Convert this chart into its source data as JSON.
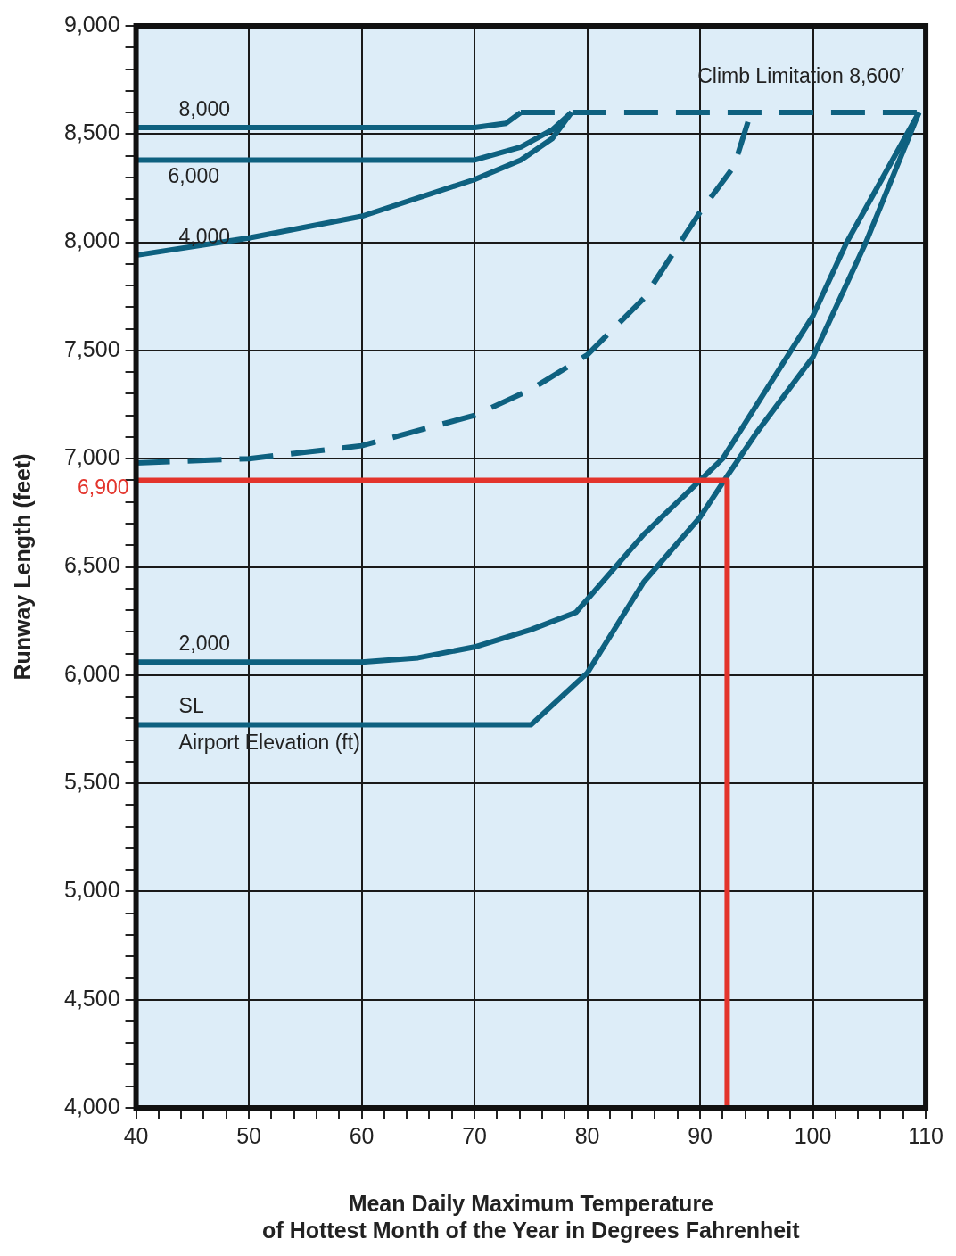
{
  "chart_data": {
    "type": "line",
    "xlabel": "Mean Daily Maximum Temperature\nof Hottest Month of the Year in Degrees Fahrenheit",
    "ylabel": "Runway Length (feet)",
    "legend_title": "Airport Elevation (ft)",
    "xlim": [
      40,
      110
    ],
    "ylim": [
      4000,
      9000
    ],
    "xticks": [
      40,
      {
        "value": 42,
        "label": null
      },
      {
        "value": 44,
        "label": null
      },
      {
        "value": 46,
        "label": null
      },
      {
        "value": 48,
        "label": null
      },
      50,
      {
        "value": 52,
        "label": null
      },
      {
        "value": 54,
        "label": null
      },
      {
        "value": 56,
        "label": null
      },
      {
        "value": 58,
        "label": null
      },
      60,
      {
        "value": 62,
        "label": null
      },
      {
        "value": 64,
        "label": null
      },
      {
        "value": 66,
        "label": null
      },
      {
        "value": 68,
        "label": null
      },
      70,
      {
        "value": 72,
        "label": null
      },
      {
        "value": 74,
        "label": null
      },
      {
        "value": 76,
        "label": null
      },
      {
        "value": 78,
        "label": null
      },
      80,
      {
        "value": 82,
        "label": null
      },
      {
        "value": 84,
        "label": null
      },
      {
        "value": 86,
        "label": null
      },
      {
        "value": 88,
        "label": null
      },
      90,
      {
        "value": 92,
        "label": null
      },
      {
        "value": 94,
        "label": null
      },
      {
        "value": 96,
        "label": null
      },
      {
        "value": 98,
        "label": null
      },
      100,
      {
        "value": 102,
        "label": null
      },
      {
        "value": 104,
        "label": null
      },
      {
        "value": 106,
        "label": null
      },
      {
        "value": 108,
        "label": null
      },
      110
    ],
    "yticks": [
      {
        "value": 4000,
        "label": "4,000"
      },
      {
        "value": 4100,
        "label": null
      },
      {
        "value": 4200,
        "label": null
      },
      {
        "value": 4300,
        "label": null
      },
      {
        "value": 4400,
        "label": null
      },
      {
        "value": 4500,
        "label": "4,500"
      },
      {
        "value": 4600,
        "label": null
      },
      {
        "value": 4700,
        "label": null
      },
      {
        "value": 4800,
        "label": null
      },
      {
        "value": 4900,
        "label": null
      },
      {
        "value": 5000,
        "label": "5,000"
      },
      {
        "value": 5100,
        "label": null
      },
      {
        "value": 5200,
        "label": null
      },
      {
        "value": 5300,
        "label": null
      },
      {
        "value": 5400,
        "label": null
      },
      {
        "value": 5500,
        "label": "5,500"
      },
      {
        "value": 5600,
        "label": null
      },
      {
        "value": 5700,
        "label": null
      },
      {
        "value": 5800,
        "label": null
      },
      {
        "value": 5900,
        "label": null
      },
      {
        "value": 6000,
        "label": "6,000"
      },
      {
        "value": 6100,
        "label": null
      },
      {
        "value": 6200,
        "label": null
      },
      {
        "value": 6300,
        "label": null
      },
      {
        "value": 6400,
        "label": null
      },
      {
        "value": 6500,
        "label": "6,500"
      },
      {
        "value": 6600,
        "label": null
      },
      {
        "value": 6700,
        "label": null
      },
      {
        "value": 6800,
        "label": null
      },
      {
        "value": 6900,
        "label": null
      },
      {
        "value": 7000,
        "label": "7,000"
      },
      {
        "value": 7100,
        "label": null
      },
      {
        "value": 7200,
        "label": null
      },
      {
        "value": 7300,
        "label": null
      },
      {
        "value": 7400,
        "label": null
      },
      {
        "value": 7500,
        "label": "7,500"
      },
      {
        "value": 7600,
        "label": null
      },
      {
        "value": 7700,
        "label": null
      },
      {
        "value": 7800,
        "label": null
      },
      {
        "value": 7900,
        "label": null
      },
      {
        "value": 8000,
        "label": "8,000"
      },
      {
        "value": 8100,
        "label": null
      },
      {
        "value": 8200,
        "label": null
      },
      {
        "value": 8300,
        "label": null
      },
      {
        "value": 8400,
        "label": null
      },
      {
        "value": 8500,
        "label": "8,500"
      },
      {
        "value": 8600,
        "label": null
      },
      {
        "value": 8700,
        "label": null
      },
      {
        "value": 8800,
        "label": null
      },
      {
        "value": 8900,
        "label": null
      },
      {
        "value": 9000,
        "label": "9,000"
      }
    ],
    "grid": true,
    "marker": "none",
    "line_style": "solid",
    "series": [
      {
        "name": "8,000",
        "color": "#0e6180",
        "x": [
          40,
          70,
          72.8,
          74.1
        ],
        "values": [
          8530,
          8530,
          8550,
          8600
        ]
      },
      {
        "name": "6,000",
        "color": "#0e6180",
        "x": [
          40,
          70,
          74.1,
          76.9,
          78.6
        ],
        "values": [
          8380,
          8380,
          8440,
          8520,
          8600
        ]
      },
      {
        "name": "4,000",
        "color": "#0e6180",
        "x": [
          40,
          50,
          60,
          70,
          74.1,
          76.9,
          78.6
        ],
        "values": [
          7940,
          8020,
          8120,
          8290,
          8380,
          8480,
          8600
        ]
      },
      {
        "color": "#0e6180",
        "line_style": "dashed",
        "x": [
          40,
          50,
          60,
          70,
          75,
          80,
          85,
          90,
          93,
          94.5
        ],
        "values": [
          6980,
          7000,
          7060,
          7200,
          7320,
          7480,
          7740,
          8140,
          8350,
          8600
        ]
      },
      {
        "name": "2,000",
        "color": "#0e6180",
        "x": [
          40,
          60,
          65,
          70,
          75,
          79,
          85,
          90,
          92,
          100,
          103,
          109.4
        ],
        "values": [
          6060,
          6060,
          6080,
          6130,
          6210,
          6290,
          6650,
          6900,
          7000,
          7660,
          8000,
          8600
        ]
      },
      {
        "name": "SL",
        "color": "#0e6180",
        "x": [
          40,
          75,
          80,
          85,
          90,
          92.4,
          95,
          100,
          104.7,
          109.4
        ],
        "values": [
          5770,
          5770,
          6010,
          6430,
          6730,
          6920,
          7120,
          7470,
          8000,
          8600
        ]
      },
      {
        "name": "Climb Limitation 8,600′",
        "color": "#0e6180",
        "line_style": "dashed",
        "x": [
          74.1,
          110
        ],
        "values": [
          8600,
          8600
        ]
      },
      {
        "color": "#e3342c",
        "x": [
          40,
          92.4,
          92.4
        ],
        "values": [
          6900,
          6900,
          4000
        ]
      }
    ],
    "annotations": [
      {
        "text": "6,900",
        "x": 40,
        "y": 6900
      }
    ]
  }
}
